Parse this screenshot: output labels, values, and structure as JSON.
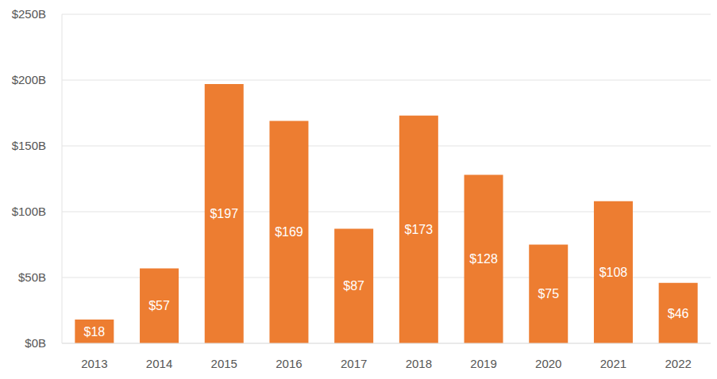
{
  "chart_data": {
    "type": "bar",
    "categories": [
      "2013",
      "2014",
      "2015",
      "2016",
      "2017",
      "2018",
      "2019",
      "2020",
      "2021",
      "2022"
    ],
    "values": [
      18,
      57,
      197,
      169,
      87,
      173,
      128,
      75,
      108,
      46
    ],
    "value_labels": [
      "$18",
      "$57",
      "$197",
      "$169",
      "$87",
      "$173",
      "$128",
      "$75",
      "$108",
      "$46"
    ],
    "data_labels": true,
    "color": "#ed7d31",
    "ylim": [
      0,
      250
    ],
    "yticks": [
      {
        "value": 0,
        "label": "$0B"
      },
      {
        "value": 50,
        "label": "$50B"
      },
      {
        "value": 100,
        "label": "$100B"
      },
      {
        "value": 150,
        "label": "$150B"
      },
      {
        "value": 200,
        "label": "$200B"
      },
      {
        "value": 250,
        "label": "$250B"
      }
    ],
    "grid": true
  }
}
